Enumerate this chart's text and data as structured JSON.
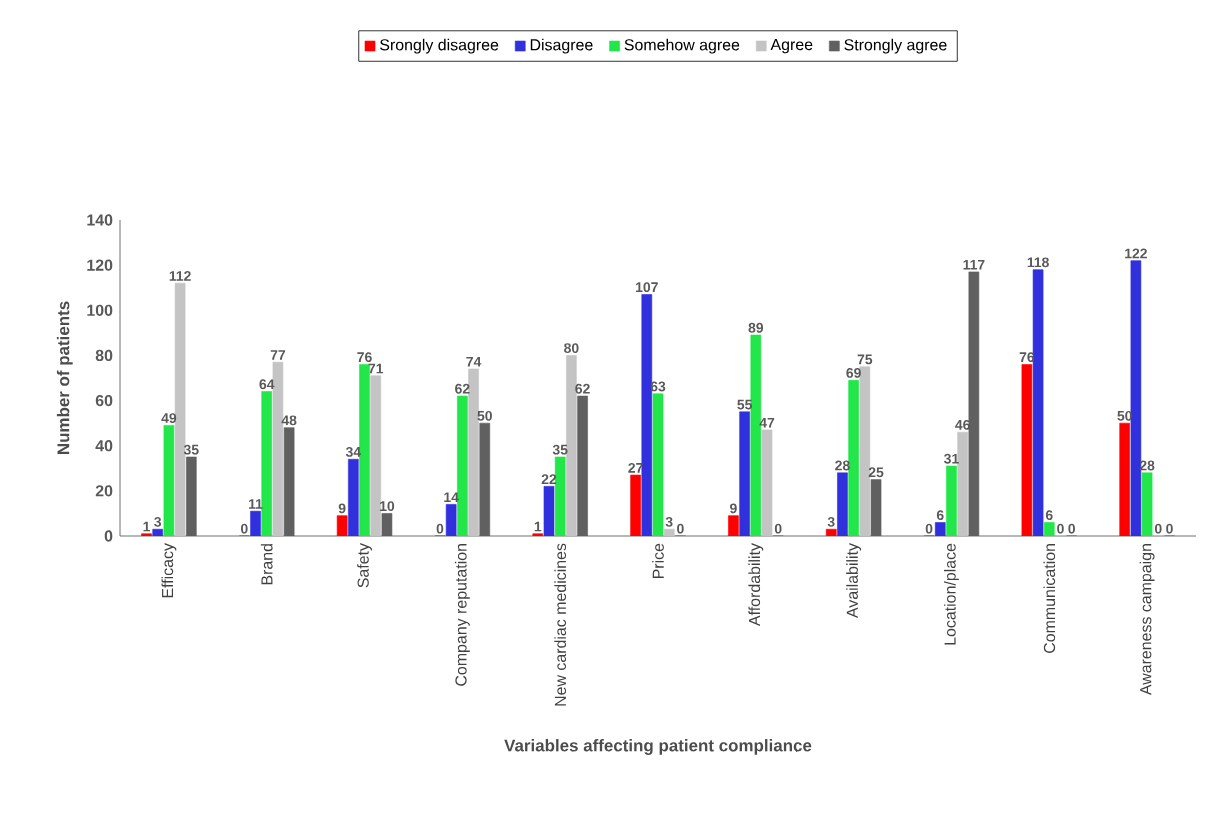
{
  "chart_data": {
    "type": "bar",
    "xlabel": "Variables affecting patient compliance",
    "ylabel": "Number of patients",
    "categories": [
      "Efficacy",
      "Brand",
      "Safety",
      "Company reputation",
      "New cardiac medicines",
      "Price",
      "Affordability",
      "Availability",
      "Location/place",
      "Communication",
      "Awareness campaign"
    ],
    "series": [
      {
        "name": "Srongly disagree",
        "color": "#ff0000",
        "values": [
          1,
          0,
          9,
          0,
          1,
          27,
          9,
          3,
          0,
          76,
          50
        ]
      },
      {
        "name": "Disagree",
        "color": "#3030dd",
        "values": [
          3,
          11,
          34,
          14,
          22,
          107,
          55,
          28,
          6,
          118,
          122
        ]
      },
      {
        "name": "Somehow agree",
        "color": "#22e64a",
        "values": [
          49,
          64,
          76,
          62,
          35,
          63,
          89,
          69,
          31,
          6,
          28
        ]
      },
      {
        "name": "Agree",
        "color": "#c4c4c4",
        "values": [
          112,
          77,
          71,
          74,
          80,
          3,
          47,
          75,
          46,
          0,
          0
        ]
      },
      {
        "name": "Strongly agree",
        "color": "#606060",
        "values": [
          35,
          48,
          10,
          50,
          62,
          0,
          0,
          25,
          117,
          0,
          0
        ]
      }
    ],
    "ylim": [
      0,
      140
    ],
    "yticks": [
      0,
      20,
      40,
      60,
      80,
      100,
      120,
      140
    ],
    "grid": false,
    "legend": "top",
    "data_labels": true
  }
}
